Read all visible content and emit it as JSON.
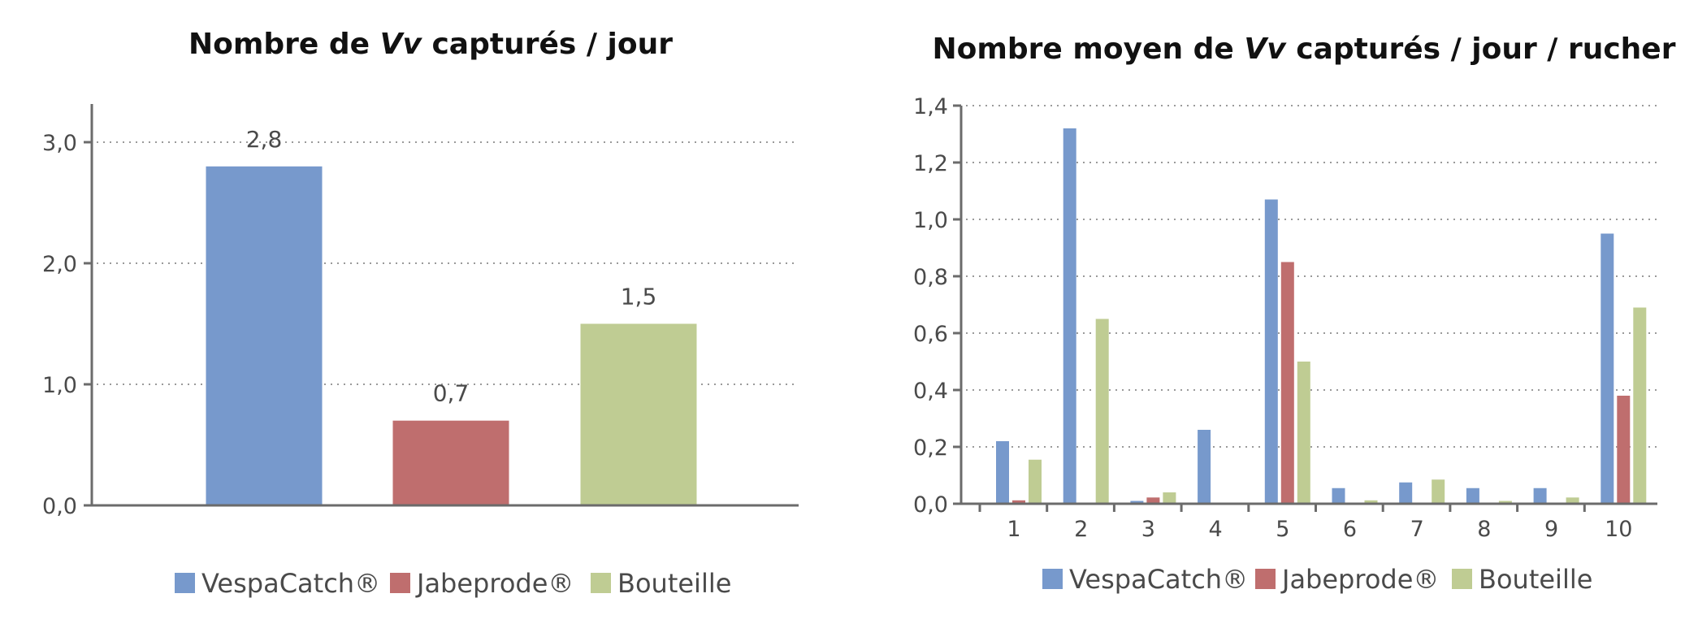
{
  "chart_data": [
    {
      "type": "bar",
      "title": "Nombre de Vv capturés / jour",
      "title_parts": {
        "before": "Nombre de ",
        "italic": "Vv",
        "after": " capturés / jour"
      },
      "categories": [
        "VespaCatch®",
        "Jabeprode®",
        "Bouteille"
      ],
      "values": [
        2.8,
        0.7,
        1.5
      ],
      "value_labels": [
        "2,8",
        "0,7",
        "1,5"
      ],
      "ylim": [
        0,
        3.0
      ],
      "yticks": [
        0,
        1,
        2,
        3
      ],
      "ytick_labels": [
        "0,0",
        "1,0",
        "2,0",
        "3,0"
      ],
      "xlabel": "",
      "ylabel": "",
      "grid": true,
      "legend_position": "bottom",
      "colors": [
        "#7799cc",
        "#bf6e6e",
        "#bfcc93"
      ]
    },
    {
      "type": "bar",
      "title": "Nombre moyen de Vv capturés / jour / rucher",
      "title_parts": {
        "before": "Nombre moyen de ",
        "italic": "Vv",
        "after": " capturés / jour / rucher"
      },
      "categories": [
        "1",
        "2",
        "3",
        "4",
        "5",
        "6",
        "7",
        "8",
        "9",
        "10"
      ],
      "series": [
        {
          "name": "VespaCatch®",
          "color": "#7799cc",
          "values": [
            0.22,
            1.32,
            0.01,
            0.26,
            1.07,
            0.055,
            0.075,
            0.055,
            0.055,
            0.95
          ]
        },
        {
          "name": "Jabeprode®",
          "color": "#bf6e6e",
          "values": [
            0.012,
            0.0,
            0.022,
            0.0,
            0.85,
            0.0,
            0.0,
            0.0,
            0.0,
            0.38
          ]
        },
        {
          "name": "Bouteille",
          "color": "#bfcc93",
          "values": [
            0.155,
            0.65,
            0.04,
            0.0,
            0.5,
            0.012,
            0.085,
            0.01,
            0.022,
            0.69
          ]
        }
      ],
      "ylim": [
        0,
        1.4
      ],
      "yticks": [
        0,
        0.2,
        0.4,
        0.6,
        0.8,
        1.0,
        1.2,
        1.4
      ],
      "ytick_labels": [
        "0,0",
        "0,2",
        "0,4",
        "0,6",
        "0,8",
        "1,0",
        "1,2",
        "1,4"
      ],
      "xlabel": "",
      "ylabel": "",
      "grid": true,
      "legend_position": "bottom"
    }
  ]
}
